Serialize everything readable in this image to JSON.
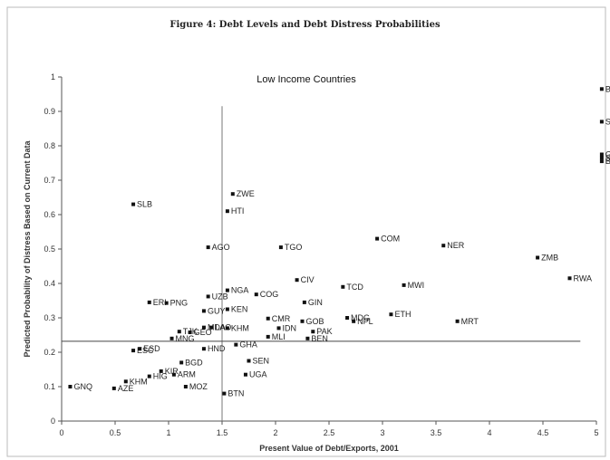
{
  "figure_title": "Figure 4:  Debt Levels and Debt Distress Probabilities",
  "chart_data": {
    "type": "scatter",
    "title": "Low Income Countries",
    "xlabel": "Present Value of Debt/Exports, 2001",
    "ylabel": "Predicted Probability of Distress Based on Current Data",
    "xlim": [
      0,
      5
    ],
    "ylim": [
      0,
      1
    ],
    "xticks": [
      "0",
      "0.5",
      "1",
      "1.5",
      "2",
      "2.5",
      "3",
      "3.5",
      "4",
      "4.5",
      "5"
    ],
    "yticks": [
      "0",
      "0.1",
      "0.2",
      "0.3",
      "0.4",
      "0.5",
      "0.6",
      "0.7",
      "0.8",
      "0.9",
      "1"
    ],
    "reference_lines": {
      "vertical_x": 1.5,
      "vertical_y_range": [
        0,
        0.915
      ],
      "horizontal_y": 0.232,
      "horizontal_x_range": [
        0,
        4.85
      ]
    },
    "points": [
      {
        "label": "GNQ",
        "x": 0.08,
        "y": 0.1
      },
      {
        "label": "AZE",
        "x": 0.49,
        "y": 0.095
      },
      {
        "label": "KHM",
        "x": 0.6,
        "y": 0.115
      },
      {
        "label": "HIG",
        "x": 0.82,
        "y": 0.13
      },
      {
        "label": "ARM",
        "x": 1.05,
        "y": 0.135
      },
      {
        "label": "KIR",
        "x": 0.93,
        "y": 0.145
      },
      {
        "label": "MOZ",
        "x": 1.16,
        "y": 0.1
      },
      {
        "label": "BGD",
        "x": 1.12,
        "y": 0.17
      },
      {
        "label": "ESC",
        "x": 0.67,
        "y": 0.205
      },
      {
        "label": "ESD",
        "x": 0.73,
        "y": 0.21
      },
      {
        "label": "HND",
        "x": 1.33,
        "y": 0.21
      },
      {
        "label": "MNG",
        "x": 1.03,
        "y": 0.24
      },
      {
        "label": "TJK",
        "x": 1.1,
        "y": 0.26
      },
      {
        "label": "GEO",
        "x": 1.2,
        "y": 0.258
      },
      {
        "label": "MDA",
        "x": 1.33,
        "y": 0.272
      },
      {
        "label": "LAO",
        "x": 1.4,
        "y": 0.272
      },
      {
        "label": "KHM",
        "x": 1.55,
        "y": 0.27
      },
      {
        "label": "GUY",
        "x": 1.33,
        "y": 0.32
      },
      {
        "label": "KEN",
        "x": 1.55,
        "y": 0.325
      },
      {
        "label": "ERI",
        "x": 0.82,
        "y": 0.345
      },
      {
        "label": "PNG",
        "x": 0.98,
        "y": 0.343
      },
      {
        "label": "UZB",
        "x": 1.37,
        "y": 0.362
      },
      {
        "label": "NGA",
        "x": 1.55,
        "y": 0.38
      },
      {
        "label": "COG",
        "x": 1.82,
        "y": 0.368
      },
      {
        "label": "GHA",
        "x": 1.63,
        "y": 0.222
      },
      {
        "label": "MLI",
        "x": 1.93,
        "y": 0.245
      },
      {
        "label": "IDN",
        "x": 2.03,
        "y": 0.27
      },
      {
        "label": "CMR",
        "x": 1.93,
        "y": 0.298
      },
      {
        "label": "SEN",
        "x": 1.75,
        "y": 0.175
      },
      {
        "label": "UGA",
        "x": 1.72,
        "y": 0.135
      },
      {
        "label": "BTN",
        "x": 1.52,
        "y": 0.08
      },
      {
        "label": "SLB",
        "x": 0.67,
        "y": 0.63
      },
      {
        "label": "ZWE",
        "x": 1.6,
        "y": 0.66
      },
      {
        "label": "HTI",
        "x": 1.55,
        "y": 0.61
      },
      {
        "label": "AGO",
        "x": 1.37,
        "y": 0.505
      },
      {
        "label": "TGO",
        "x": 2.05,
        "y": 0.505
      },
      {
        "label": "CIV",
        "x": 2.2,
        "y": 0.41
      },
      {
        "label": "GIN",
        "x": 2.27,
        "y": 0.345
      },
      {
        "label": "GOB",
        "x": 2.25,
        "y": 0.29
      },
      {
        "label": "PAK",
        "x": 2.35,
        "y": 0.26
      },
      {
        "label": "BEN",
        "x": 2.3,
        "y": 0.24
      },
      {
        "label": "TCD",
        "x": 2.63,
        "y": 0.39
      },
      {
        "label": "MDG",
        "x": 2.67,
        "y": 0.3
      },
      {
        "label": "NPL",
        "x": 2.73,
        "y": 0.29
      },
      {
        "label": "ETH",
        "x": 3.08,
        "y": 0.31
      },
      {
        "label": "COM",
        "x": 2.95,
        "y": 0.53
      },
      {
        "label": "MWI",
        "x": 3.2,
        "y": 0.395
      },
      {
        "label": "NER",
        "x": 3.57,
        "y": 0.51
      },
      {
        "label": "MRT",
        "x": 3.7,
        "y": 0.29
      },
      {
        "label": "ZMB",
        "x": 4.45,
        "y": 0.475
      },
      {
        "label": "RWA",
        "x": 4.75,
        "y": 0.415
      },
      {
        "label": "BDI",
        "x": 5.05,
        "y": 0.965
      },
      {
        "label": "SLE",
        "x": 5.05,
        "y": 0.87
      },
      {
        "label": "GNB",
        "x": 5.05,
        "y": 0.775
      },
      {
        "label": "STP",
        "x": 5.05,
        "y": 0.765
      },
      {
        "label": "BFA",
        "x": 5.05,
        "y": 0.755
      }
    ]
  }
}
